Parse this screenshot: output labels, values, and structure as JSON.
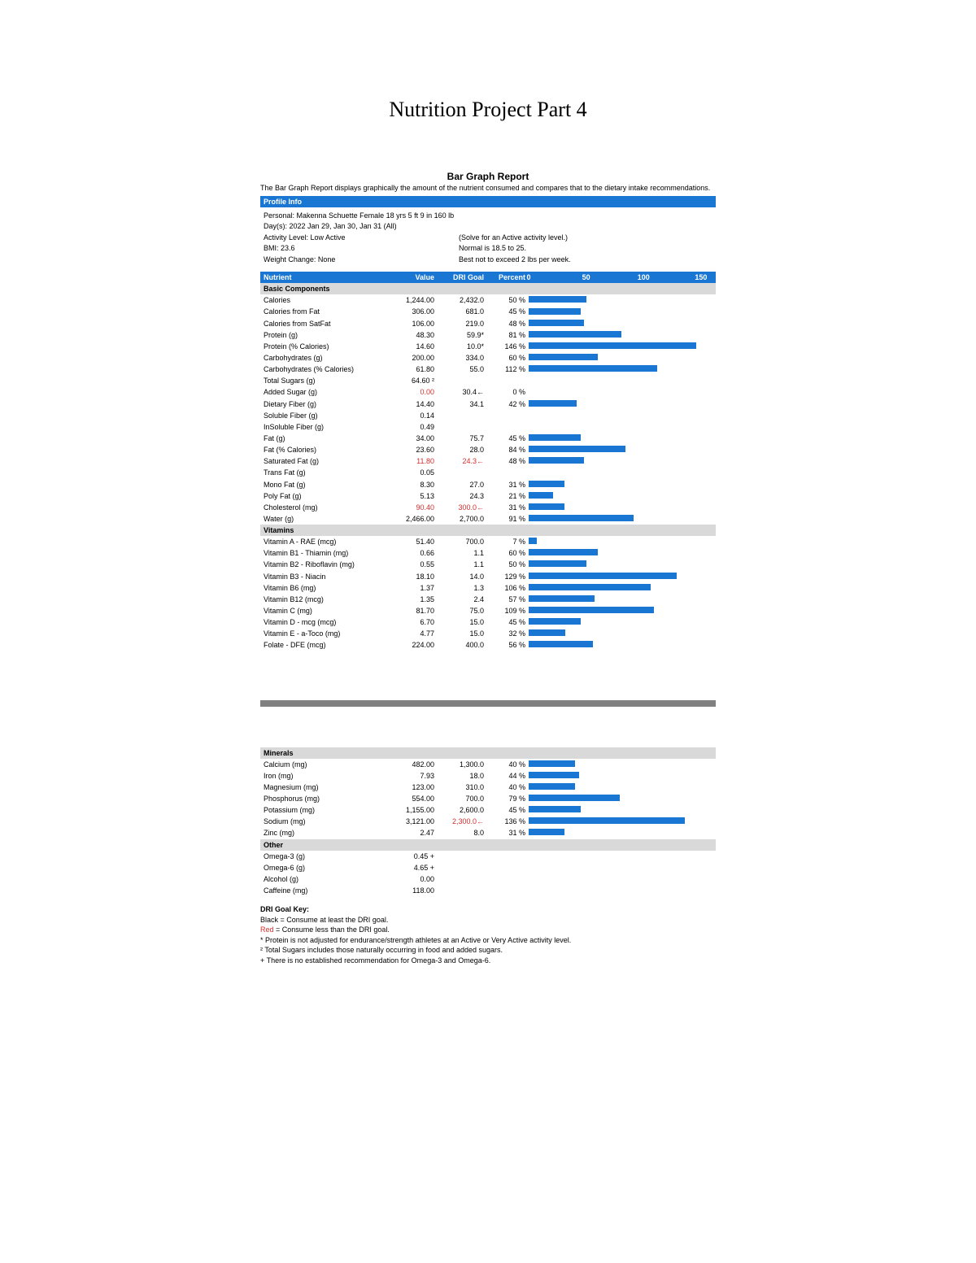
{
  "page_title": "Nutrition Project Part 4",
  "report": {
    "title": "Bar Graph Report",
    "subtitle": "The Bar Graph Report displays graphically the amount of the nutrient consumed and compares that to the dietary intake recommendations.",
    "profile_header": "Profile Info",
    "personal_line": "Personal:  Makenna Schuette      Female      18 yrs      5 ft 9 in      160 lb",
    "days_line": "Day(s):  2022 Jan 29, Jan 30, Jan 31 (All)",
    "left_lines": [
      "Activity Level:  Low Active",
      "BMI:  23.6",
      "Weight Change:  None"
    ],
    "right_lines": [
      "(Solve for an Active activity level.)",
      "Normal is 18.5 to 25.",
      "Best not to exceed 2 lbs per week."
    ],
    "columns": {
      "nutrient": "Nutrient",
      "value": "Value",
      "goal": "DRI Goal",
      "percent": "Percent"
    },
    "scale": {
      "ticks": [
        0,
        50,
        100,
        150
      ],
      "max": 160,
      "bar_color": "#1976d2"
    }
  },
  "sections": [
    {
      "name": "Basic Components",
      "rows": [
        {
          "n": "Calories",
          "v": "1,244.00",
          "g": "2,432.0",
          "p": "50",
          "bar": 50
        },
        {
          "n": "Calories from Fat",
          "v": "306.00",
          "g": "681.0",
          "p": "45",
          "bar": 45
        },
        {
          "n": "Calories from SatFat",
          "v": "106.00",
          "g": "219.0",
          "p": "48",
          "bar": 48
        },
        {
          "n": "Protein (g)",
          "v": "48.30",
          "g": "59.9*",
          "p": "81",
          "bar": 81
        },
        {
          "n": "Protein (% Calories)",
          "v": "14.60",
          "g": "10.0*",
          "p": "146",
          "bar": 146
        },
        {
          "n": "Carbohydrates (g)",
          "v": "200.00",
          "g": "334.0",
          "p": "60",
          "bar": 60
        },
        {
          "n": "Carbohydrates (% Calories)",
          "v": "61.80",
          "g": "55.0",
          "p": "112",
          "bar": 112
        },
        {
          "n": "Total Sugars (g)",
          "v": "64.60 ²",
          "g": "",
          "p": "",
          "bar": null
        },
        {
          "n": "Added Sugar (g)",
          "v": "0.00",
          "g": "30.4←",
          "p": "0",
          "bar": 0,
          "red_v": true
        },
        {
          "n": "Dietary Fiber (g)",
          "v": "14.40",
          "g": "34.1",
          "p": "42",
          "bar": 42
        },
        {
          "n": "Soluble Fiber (g)",
          "v": "0.14",
          "g": "",
          "p": "",
          "bar": null
        },
        {
          "n": "InSoluble Fiber (g)",
          "v": "0.49",
          "g": "",
          "p": "",
          "bar": null
        },
        {
          "n": "Fat (g)",
          "v": "34.00",
          "g": "75.7",
          "p": "45",
          "bar": 45
        },
        {
          "n": "Fat (% Calories)",
          "v": "23.60",
          "g": "28.0",
          "p": "84",
          "bar": 84
        },
        {
          "n": "Saturated Fat (g)",
          "v": "11.80",
          "g": "24.3←",
          "p": "48",
          "bar": 48,
          "red_v": true,
          "red_g": true
        },
        {
          "n": "Trans Fat (g)",
          "v": "0.05",
          "g": "",
          "p": "",
          "bar": null
        },
        {
          "n": "Mono Fat (g)",
          "v": "8.30",
          "g": "27.0",
          "p": "31",
          "bar": 31
        },
        {
          "n": "Poly Fat (g)",
          "v": "5.13",
          "g": "24.3",
          "p": "21",
          "bar": 21
        },
        {
          "n": "Cholesterol (mg)",
          "v": "90.40",
          "g": "300.0←",
          "p": "31",
          "bar": 31,
          "red_v": true,
          "red_g": true
        },
        {
          "n": "Water (g)",
          "v": "2,466.00",
          "g": "2,700.0",
          "p": "91",
          "bar": 91
        }
      ]
    },
    {
      "name": "Vitamins",
      "rows": [
        {
          "n": "Vitamin A - RAE (mcg)",
          "v": "51.40",
          "g": "700.0",
          "p": "7",
          "bar": 7
        },
        {
          "n": "Vitamin B1 - Thiamin (mg)",
          "v": "0.66",
          "g": "1.1",
          "p": "60",
          "bar": 60
        },
        {
          "n": "Vitamin B2 - Riboflavin (mg)",
          "v": "0.55",
          "g": "1.1",
          "p": "50",
          "bar": 50
        },
        {
          "n": "Vitamin B3 - Niacin",
          "v": "18.10",
          "g": "14.0",
          "p": "129",
          "bar": 129
        },
        {
          "n": "Vitamin B6 (mg)",
          "v": "1.37",
          "g": "1.3",
          "p": "106",
          "bar": 106
        },
        {
          "n": "Vitamin B12 (mcg)",
          "v": "1.35",
          "g": "2.4",
          "p": "57",
          "bar": 57
        },
        {
          "n": "Vitamin C (mg)",
          "v": "81.70",
          "g": "75.0",
          "p": "109",
          "bar": 109
        },
        {
          "n": "Vitamin D - mcg (mcg)",
          "v": "6.70",
          "g": "15.0",
          "p": "45",
          "bar": 45
        },
        {
          "n": "Vitamin E - a-Toco (mg)",
          "v": "4.77",
          "g": "15.0",
          "p": "32",
          "bar": 32
        },
        {
          "n": "Folate - DFE (mcg)",
          "v": "224.00",
          "g": "400.0",
          "p": "56",
          "bar": 56
        }
      ]
    }
  ],
  "sections2": [
    {
      "name": "Minerals",
      "rows": [
        {
          "n": "Calcium (mg)",
          "v": "482.00",
          "g": "1,300.0",
          "p": "40",
          "bar": 40
        },
        {
          "n": "Iron (mg)",
          "v": "7.93",
          "g": "18.0",
          "p": "44",
          "bar": 44
        },
        {
          "n": "Magnesium (mg)",
          "v": "123.00",
          "g": "310.0",
          "p": "40",
          "bar": 40
        },
        {
          "n": "Phosphorus (mg)",
          "v": "554.00",
          "g": "700.0",
          "p": "79",
          "bar": 79
        },
        {
          "n": "Potassium (mg)",
          "v": "1,155.00",
          "g": "2,600.0",
          "p": "45",
          "bar": 45
        },
        {
          "n": "Sodium (mg)",
          "v": "3,121.00",
          "g": "2,300.0←",
          "p": "136",
          "bar": 136,
          "red_g": true
        },
        {
          "n": "Zinc (mg)",
          "v": "2.47",
          "g": "8.0",
          "p": "31",
          "bar": 31
        }
      ]
    },
    {
      "name": "Other",
      "rows": [
        {
          "n": "Omega-3 (g)",
          "v": "0.45 +",
          "g": "",
          "p": "",
          "bar": null
        },
        {
          "n": "Omega-6 (g)",
          "v": "4.65 +",
          "g": "",
          "p": "",
          "bar": null
        },
        {
          "n": "Alcohol (g)",
          "v": "0.00",
          "g": "",
          "p": "",
          "bar": null
        },
        {
          "n": "Caffeine (mg)",
          "v": "118.00",
          "g": "",
          "p": "",
          "bar": null
        }
      ]
    }
  ],
  "footnotes": {
    "title": "DRI Goal Key:",
    "lines": [
      "Black = Consume at least the DRI goal.",
      "Red = Consume less than the DRI goal.",
      "* Protein is not adjusted for endurance/strength athletes at an Active or Very Active activity level.",
      "² Total Sugars includes those naturally occurring in food and added sugars.",
      "+ There is no established recommendation for Omega-3 and Omega-6."
    ],
    "red_line_index": 1
  }
}
